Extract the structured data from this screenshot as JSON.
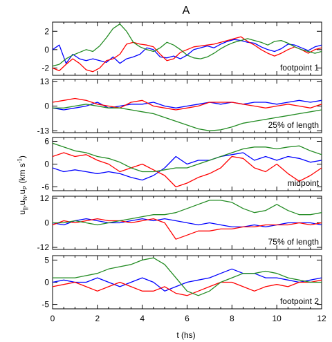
{
  "chart_data": {
    "type": "line",
    "title": "A",
    "xlabel": "t (hs)",
    "xlim": [
      0,
      12
    ],
    "xticks": [
      "0",
      "2",
      "4",
      "6",
      "8",
      "10",
      "12"
    ],
    "colors": {
      "u_parallel": "#0000ff",
      "u_N": "#ff0000",
      "u_P": "#228b22"
    },
    "panels": [
      {
        "label": "footpoint 1",
        "ylim": [
          -2.8,
          3.0
        ],
        "yticks": [
          2,
          0,
          -2
        ],
        "yticklabels": [
          "2",
          "0",
          "-2"
        ],
        "series": [
          {
            "key": "u_parallel",
            "x": [
              0,
              0.3,
              0.6,
              0.9,
              1.2,
              1.5,
              1.8,
              2.1,
              2.4,
              2.7,
              3.0,
              3.3,
              3.6,
              3.9,
              4.2,
              4.5,
              4.8,
              5.1,
              5.4,
              5.7,
              6.0,
              6.3,
              6.6,
              6.9,
              7.2,
              7.5,
              7.8,
              8.1,
              8.4,
              8.7,
              9.0,
              9.3,
              9.6,
              9.9,
              10.2,
              10.5,
              10.8,
              11.1,
              11.4,
              11.7,
              12.0
            ],
            "y": [
              0,
              0.5,
              -1.5,
              -0.5,
              -1.0,
              -1.2,
              -1.0,
              -1.2,
              -1.4,
              -0.8,
              -1.5,
              -1.0,
              -0.8,
              -0.5,
              0.2,
              0,
              -0.8,
              -0.9,
              -0.7,
              -1.0,
              -0.6,
              0,
              0.2,
              0.4,
              0.2,
              0.6,
              0.9,
              1.1,
              1.0,
              0.8,
              0.7,
              0.3,
              0,
              -0.2,
              0.1,
              0.6,
              0.5,
              0.2,
              -0.1,
              0.3,
              0.5
            ]
          },
          {
            "key": "u_N",
            "x": [
              0,
              0.3,
              0.6,
              0.9,
              1.2,
              1.5,
              1.8,
              2.1,
              2.4,
              2.7,
              3.0,
              3.3,
              3.6,
              3.9,
              4.2,
              4.5,
              4.8,
              5.1,
              5.4,
              5.7,
              6.0,
              6.3,
              6.6,
              6.9,
              7.2,
              7.5,
              7.8,
              8.1,
              8.4,
              8.7,
              9.0,
              9.3,
              9.6,
              9.9,
              10.2,
              10.5,
              10.8,
              11.1,
              11.4,
              11.7,
              12.0
            ],
            "y": [
              -2.0,
              -2.3,
              -1.6,
              -1.0,
              -1.5,
              -2.2,
              -2.4,
              -2.0,
              -1.2,
              -1.0,
              -0.5,
              0.6,
              0.8,
              0.6,
              0.5,
              0.3,
              -0.5,
              -1.2,
              -1.0,
              -0.3,
              0,
              0.3,
              0.4,
              0.5,
              0.6,
              0.8,
              1.0,
              1.2,
              1.4,
              0.9,
              0.5,
              0,
              -0.4,
              -0.7,
              -0.4,
              0.0,
              0.3,
              0.0,
              -0.4,
              0.0,
              0.2
            ]
          },
          {
            "key": "u_P",
            "x": [
              0,
              0.3,
              0.6,
              0.9,
              1.2,
              1.5,
              1.8,
              2.1,
              2.4,
              2.7,
              3.0,
              3.3,
              3.6,
              3.9,
              4.2,
              4.5,
              4.8,
              5.1,
              5.4,
              5.7,
              6.0,
              6.3,
              6.6,
              6.9,
              7.2,
              7.5,
              7.8,
              8.1,
              8.4,
              8.7,
              9.0,
              9.3,
              9.6,
              9.9,
              10.2,
              10.5,
              10.8,
              11.1,
              11.4,
              11.7,
              12.0
            ],
            "y": [
              -1.8,
              -1.6,
              -1.0,
              -0.6,
              -0.3,
              0,
              -0.2,
              0.4,
              1.3,
              2.3,
              2.8,
              2.0,
              0.8,
              0.3,
              0.0,
              -0.2,
              0.2,
              0.8,
              0.5,
              0,
              -0.6,
              -0.9,
              -1.0,
              -0.8,
              -0.4,
              0.1,
              0.5,
              0.8,
              1.0,
              1.2,
              1.0,
              0.8,
              0.5,
              0.9,
              1.0,
              0.7,
              0.3,
              0,
              -0.2,
              -0.4,
              -0.2
            ]
          }
        ]
      },
      {
        "label": "25% of length",
        "ylim": [
          -14,
          14
        ],
        "yticks": [
          13,
          0,
          -13
        ],
        "yticklabels": [
          "13",
          "0",
          "-13"
        ],
        "series": [
          {
            "key": "u_parallel",
            "x": [
              0,
              0.5,
              1.0,
              1.5,
              2.0,
              2.5,
              3.0,
              3.5,
              4.0,
              4.5,
              5.0,
              5.5,
              6.0,
              6.5,
              7.0,
              7.5,
              8.0,
              8.5,
              9.0,
              9.5,
              10.0,
              10.5,
              11.0,
              11.5,
              12.0
            ],
            "y": [
              -1,
              -2,
              -1,
              0,
              2,
              -1,
              0,
              1,
              1,
              2,
              0,
              -1,
              0,
              1,
              2,
              1,
              2,
              1,
              2,
              2,
              1,
              2,
              3,
              2,
              3
            ]
          },
          {
            "key": "u_N",
            "x": [
              0,
              0.5,
              1.0,
              1.5,
              2.0,
              2.5,
              3.0,
              3.5,
              4.0,
              4.5,
              5.0,
              5.5,
              6.0,
              6.5,
              7.0,
              7.5,
              8.0,
              8.5,
              9.0,
              9.5,
              10.0,
              10.5,
              11.0,
              11.5,
              12.0
            ],
            "y": [
              2,
              3,
              4,
              3,
              1,
              0,
              -1,
              2,
              3,
              0,
              -1,
              -2,
              -1,
              0,
              2,
              2,
              2,
              1,
              0,
              -1,
              0,
              1,
              0,
              -1,
              1
            ]
          },
          {
            "key": "u_P",
            "x": [
              0,
              0.5,
              1.0,
              1.5,
              2.0,
              2.5,
              3.0,
              3.5,
              4.0,
              4.5,
              5.0,
              5.5,
              6.0,
              6.5,
              7.0,
              7.5,
              8.0,
              8.5,
              9.0,
              9.5,
              10.0,
              10.5,
              11.0,
              11.5,
              12.0
            ],
            "y": [
              -1,
              -1,
              0,
              1,
              0,
              -1,
              -1,
              -2,
              -3,
              -4,
              -6,
              -8,
              -10,
              -12,
              -13,
              -12.5,
              -11,
              -9,
              -8,
              -7,
              -6,
              -5,
              -4,
              -3,
              -2
            ]
          }
        ]
      },
      {
        "label": "midpoint",
        "ylim": [
          -7,
          7
        ],
        "yticks": [
          6,
          0,
          -6
        ],
        "yticklabels": [
          "6",
          "0",
          "-6"
        ],
        "series": [
          {
            "key": "u_parallel",
            "x": [
              0,
              0.5,
              1.0,
              1.5,
              2.0,
              2.5,
              3.0,
              3.5,
              4.0,
              4.5,
              5.0,
              5.5,
              6.0,
              6.5,
              7.0,
              7.5,
              8.0,
              8.5,
              9.0,
              9.5,
              10.0,
              10.5,
              11.0,
              11.5,
              12.0
            ],
            "y": [
              -1,
              -2,
              -1.5,
              -2,
              -2.5,
              -2,
              -2.5,
              -3.5,
              -4.2,
              -3,
              -1,
              2,
              0,
              1,
              1,
              2,
              2.5,
              3,
              1,
              2,
              1,
              2,
              1.5,
              0.5,
              1
            ]
          },
          {
            "key": "u_N",
            "x": [
              0,
              0.5,
              1.0,
              1.5,
              2.0,
              2.5,
              3.0,
              3.5,
              4.0,
              4.5,
              5.0,
              5.5,
              6.0,
              6.5,
              7.0,
              7.5,
              8.0,
              8.5,
              9.0,
              9.5,
              10.0,
              10.5,
              11.0,
              11.5,
              12.0
            ],
            "y": [
              2,
              3,
              2,
              2.5,
              1,
              0,
              -2,
              -1,
              0,
              -1.5,
              -3,
              -6,
              -5,
              -3.5,
              -2.5,
              -1,
              2,
              1.5,
              -1,
              -2,
              0,
              -2.5,
              -4.5,
              -3,
              -1
            ]
          },
          {
            "key": "u_P",
            "x": [
              0,
              0.5,
              1.0,
              1.5,
              2.0,
              2.5,
              3.0,
              3.5,
              4.0,
              4.5,
              5.0,
              5.5,
              6.0,
              6.5,
              7.0,
              7.5,
              8.0,
              8.5,
              9.0,
              9.5,
              10.0,
              10.5,
              11.0,
              11.5,
              12.0
            ],
            "y": [
              5.5,
              4.5,
              3.5,
              3,
              2,
              1.5,
              0.5,
              -1,
              -2,
              -2,
              -1.5,
              -1,
              -1,
              0,
              1,
              2,
              3,
              4,
              4.5,
              4.5,
              4,
              4.5,
              4.8,
              3.5,
              2.5
            ]
          }
        ]
      },
      {
        "label": "75% of length",
        "ylim": [
          -13,
          13
        ],
        "yticks": [
          12,
          0,
          -12
        ],
        "yticklabels": [
          "12",
          "0",
          "-12"
        ],
        "series": [
          {
            "key": "u_parallel",
            "x": [
              0,
              0.5,
              1.0,
              1.5,
              2.0,
              2.5,
              3.0,
              3.5,
              4.0,
              4.5,
              5.0,
              5.5,
              6.0,
              6.5,
              7.0,
              7.5,
              8.0,
              8.5,
              9.0,
              9.5,
              10.0,
              10.5,
              11.0,
              11.5,
              12.0
            ],
            "y": [
              0,
              -1,
              1,
              2,
              1,
              0,
              0,
              1,
              2,
              1,
              2,
              1,
              0,
              -1,
              0,
              -1,
              -2,
              -2,
              -1,
              -2,
              -1,
              0,
              0,
              0,
              -1
            ]
          },
          {
            "key": "u_N",
            "x": [
              0,
              0.5,
              1.0,
              1.5,
              2.0,
              2.5,
              3.0,
              3.5,
              4.0,
              4.5,
              5.0,
              5.5,
              6.0,
              6.5,
              7.0,
              7.5,
              8.0,
              8.5,
              9.0,
              9.5,
              10.0,
              10.5,
              11.0,
              11.5,
              12.0
            ],
            "y": [
              -1,
              1,
              0,
              1,
              2,
              1,
              1,
              0,
              1,
              2,
              0,
              -8,
              -6,
              -4,
              -4,
              -3,
              -3,
              -2,
              -2,
              -1,
              -1,
              -1,
              0,
              -1,
              0
            ]
          },
          {
            "key": "u_P",
            "x": [
              0,
              0.5,
              1.0,
              1.5,
              2.0,
              2.5,
              3.0,
              3.5,
              4.0,
              4.5,
              5.0,
              5.5,
              6.0,
              6.5,
              7.0,
              7.5,
              8.0,
              8.5,
              9.0,
              9.5,
              10.0,
              10.5,
              11.0,
              11.5,
              12.0
            ],
            "y": [
              0,
              0,
              1,
              0,
              -1,
              0,
              1,
              2,
              3,
              4,
              4,
              5,
              7,
              9,
              11,
              11,
              10,
              7,
              5,
              6,
              9,
              6,
              4,
              4,
              5
            ]
          }
        ]
      },
      {
        "label": "footpoint 2",
        "ylim": [
          -6,
          6
        ],
        "yticks": [
          5,
          0,
          -5
        ],
        "yticklabels": [
          "5",
          "0",
          "-5"
        ],
        "series": [
          {
            "key": "u_parallel",
            "x": [
              0,
              0.5,
              1.0,
              1.5,
              2.0,
              2.5,
              3.0,
              3.5,
              4.0,
              4.5,
              5.0,
              5.5,
              6.0,
              6.5,
              7.0,
              7.5,
              8.0,
              8.5,
              9.0,
              9.5,
              10.0,
              10.5,
              11.0,
              11.5,
              12.0
            ],
            "y": [
              0,
              0.5,
              0,
              0,
              1,
              0,
              -1,
              0,
              1,
              0,
              -2,
              -1,
              0,
              0.5,
              1,
              2,
              3,
              2,
              2,
              1,
              1,
              0.5,
              0,
              0.5,
              1
            ]
          },
          {
            "key": "u_N",
            "x": [
              0,
              0.5,
              1.0,
              1.5,
              2.0,
              2.5,
              3.0,
              3.5,
              4.0,
              4.5,
              5.0,
              5.5,
              6.0,
              6.5,
              7.0,
              7.5,
              8.0,
              8.5,
              9.0,
              9.5,
              10.0,
              10.5,
              11.0,
              11.5,
              12.0
            ],
            "y": [
              -1,
              -0.5,
              0,
              -1,
              -2,
              -1,
              0,
              -1,
              -2,
              -2,
              -1,
              -2.5,
              -3,
              -2,
              -1,
              0,
              0,
              -1,
              -2,
              -1,
              -0.5,
              -1,
              0,
              0,
              0.5
            ]
          },
          {
            "key": "u_P",
            "x": [
              0,
              0.5,
              1.0,
              1.5,
              2.0,
              2.5,
              3.0,
              3.5,
              4.0,
              4.5,
              5.0,
              5.5,
              6.0,
              6.5,
              7.0,
              7.5,
              8.0,
              8.5,
              9.0,
              9.5,
              10.0,
              10.5,
              11.0,
              11.5,
              12.0
            ],
            "y": [
              1,
              1,
              1,
              1.5,
              2,
              3,
              3.5,
              4,
              5,
              5.5,
              4,
              1,
              -2,
              -3,
              -2,
              0,
              1,
              2,
              2,
              2.5,
              2,
              1,
              0.5,
              0,
              0
            ]
          }
        ]
      }
    ]
  }
}
